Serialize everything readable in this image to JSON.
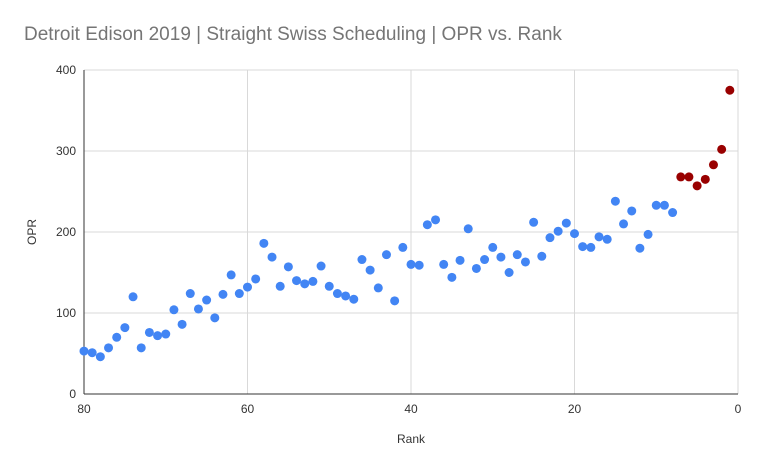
{
  "chart_data": {
    "type": "scatter",
    "title": "Detroit Edison 2019 | Straight Swiss Scheduling | OPR vs. Rank",
    "xlabel": "Rank",
    "ylabel": "OPR",
    "xlim": [
      80,
      0
    ],
    "ylim": [
      0,
      400
    ],
    "x_ticks": [
      80,
      60,
      40,
      20,
      0
    ],
    "y_ticks": [
      0,
      100,
      200,
      300,
      400
    ],
    "grid": true,
    "legend": "none",
    "colors": {
      "default": "#4285f4",
      "highlight": "#990000",
      "grid": "#d9d9d9",
      "axis": "#333333",
      "text": "#757575"
    },
    "series": [
      {
        "color": "#4285f4",
        "points": [
          [
            80,
            53
          ],
          [
            79,
            51
          ],
          [
            78,
            46
          ],
          [
            77,
            57
          ],
          [
            76,
            70
          ],
          [
            75,
            82
          ],
          [
            74,
            120
          ],
          [
            73,
            57
          ],
          [
            72,
            76
          ],
          [
            71,
            72
          ],
          [
            70,
            74
          ],
          [
            69,
            104
          ],
          [
            68,
            86
          ],
          [
            67,
            124
          ],
          [
            66,
            105
          ],
          [
            65,
            116
          ],
          [
            64,
            94
          ],
          [
            63,
            123
          ],
          [
            62,
            147
          ],
          [
            61,
            124
          ],
          [
            60,
            132
          ],
          [
            59,
            142
          ],
          [
            58,
            186
          ],
          [
            57,
            169
          ],
          [
            56,
            133
          ],
          [
            55,
            157
          ],
          [
            54,
            140
          ],
          [
            53,
            136
          ],
          [
            52,
            139
          ],
          [
            51,
            158
          ],
          [
            50,
            133
          ],
          [
            49,
            124
          ],
          [
            48,
            121
          ],
          [
            47,
            117
          ],
          [
            46,
            166
          ],
          [
            45,
            153
          ],
          [
            44,
            131
          ],
          [
            43,
            172
          ],
          [
            42,
            115
          ],
          [
            41,
            181
          ],
          [
            40,
            160
          ],
          [
            39,
            159
          ],
          [
            38,
            209
          ],
          [
            37,
            215
          ],
          [
            36,
            160
          ],
          [
            35,
            144
          ],
          [
            34,
            165
          ],
          [
            33,
            204
          ],
          [
            32,
            155
          ],
          [
            31,
            166
          ],
          [
            30,
            181
          ],
          [
            29,
            169
          ],
          [
            28,
            150
          ],
          [
            27,
            172
          ],
          [
            26,
            163
          ],
          [
            25,
            212
          ],
          [
            24,
            170
          ],
          [
            23,
            193
          ],
          [
            22,
            201
          ],
          [
            21,
            211
          ],
          [
            20,
            198
          ],
          [
            19,
            182
          ],
          [
            18,
            181
          ],
          [
            17,
            194
          ],
          [
            16,
            191
          ],
          [
            15,
            238
          ],
          [
            14,
            210
          ],
          [
            13,
            226
          ],
          [
            12,
            180
          ],
          [
            11,
            197
          ],
          [
            10,
            233
          ],
          [
            9,
            233
          ],
          [
            8,
            224
          ]
        ]
      },
      {
        "color": "#990000",
        "points": [
          [
            7,
            268
          ],
          [
            6,
            268
          ],
          [
            5,
            257
          ],
          [
            4,
            265
          ],
          [
            3,
            283
          ],
          [
            2,
            302
          ],
          [
            1,
            375
          ]
        ]
      }
    ]
  }
}
